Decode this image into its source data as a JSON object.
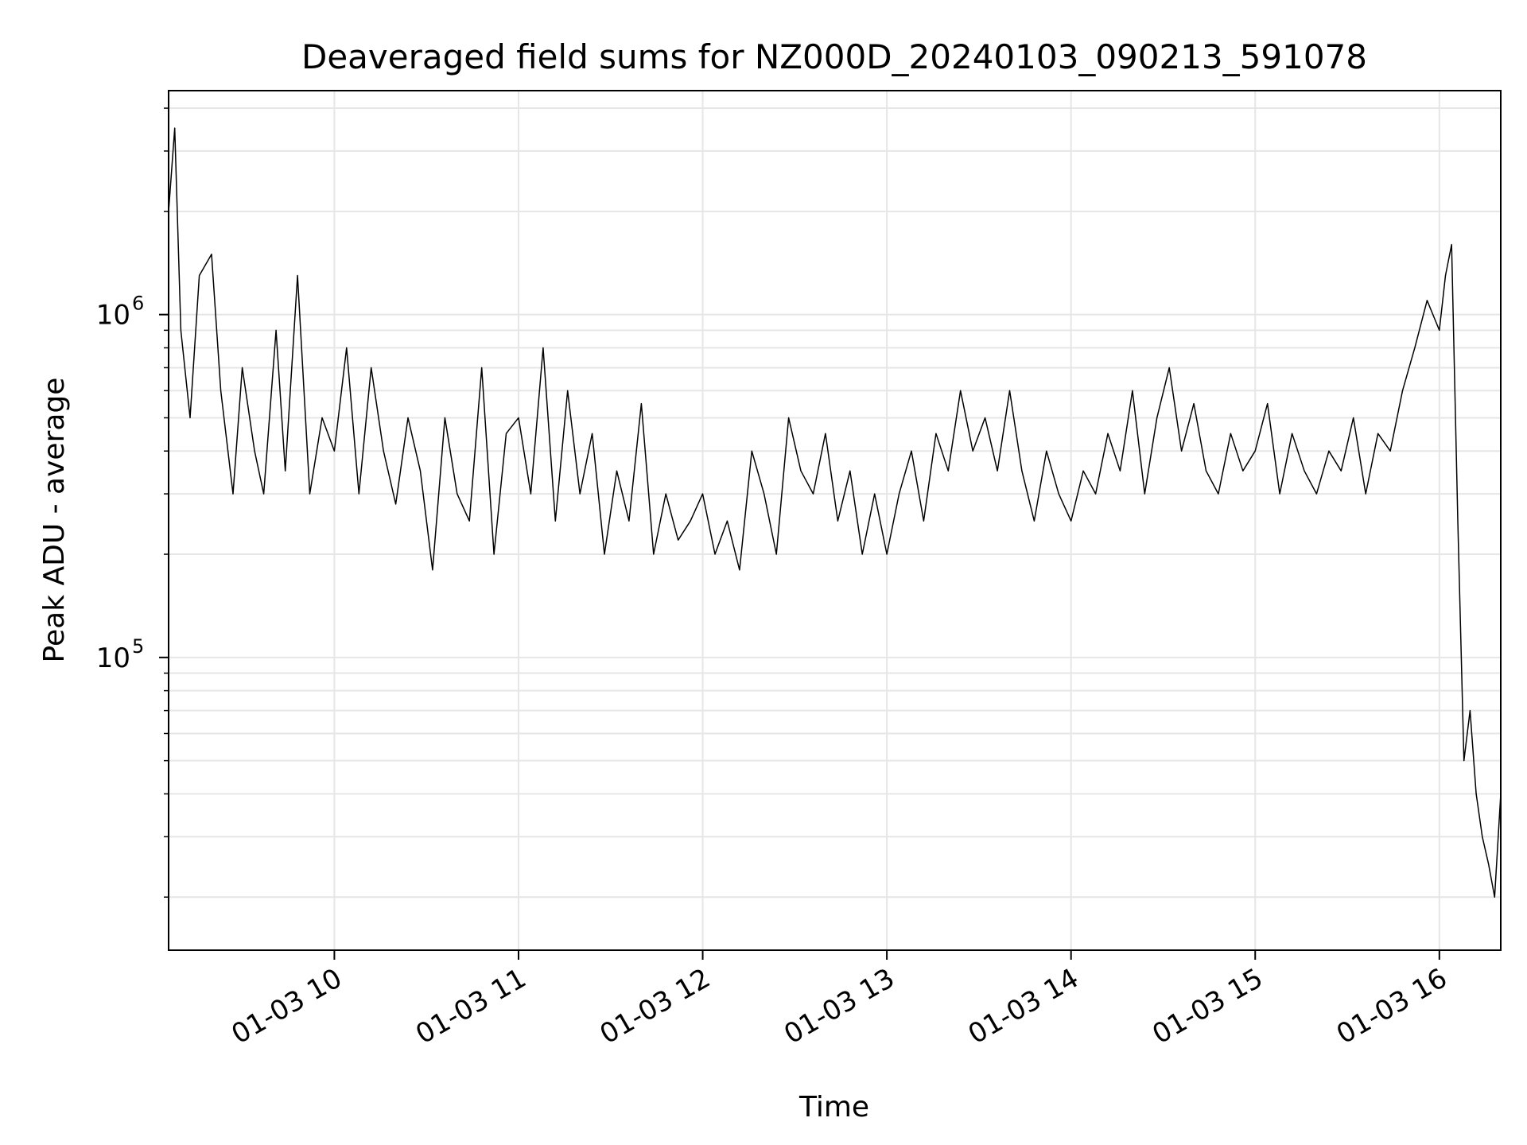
{
  "chart_data": {
    "type": "line",
    "title": "Deaveraged field sums for NZ000D_20240103_090213_591078",
    "xlabel": "Time",
    "ylabel": "Peak ADU - average",
    "xlim": [
      "2024-01-03 09:06",
      "2024-01-03 16:20"
    ],
    "ylim": [
      14000,
      4500000
    ],
    "yscale": "log",
    "grid": true,
    "line_color": "#000000",
    "x_ticks": [
      {
        "value": "2024-01-03 10:00",
        "label": "01-03 10"
      },
      {
        "value": "2024-01-03 11:00",
        "label": "01-03 11"
      },
      {
        "value": "2024-01-03 12:00",
        "label": "01-03 12"
      },
      {
        "value": "2024-01-03 13:00",
        "label": "01-03 13"
      },
      {
        "value": "2024-01-03 14:00",
        "label": "01-03 14"
      },
      {
        "value": "2024-01-03 15:00",
        "label": "01-03 15"
      },
      {
        "value": "2024-01-03 16:00",
        "label": "01-03 16"
      }
    ],
    "y_ticks": [
      {
        "value": 100000,
        "base": "10",
        "exp": "5"
      },
      {
        "value": 1000000,
        "base": "10",
        "exp": "6"
      }
    ],
    "series": [
      {
        "x": [
          "2024-01-03 09:06",
          "2024-01-03 09:08",
          "2024-01-03 09:10",
          "2024-01-03 09:13",
          "2024-01-03 09:16",
          "2024-01-03 09:20",
          "2024-01-03 09:23",
          "2024-01-03 09:27",
          "2024-01-03 09:30",
          "2024-01-03 09:34",
          "2024-01-03 09:37",
          "2024-01-03 09:41",
          "2024-01-03 09:44",
          "2024-01-03 09:48",
          "2024-01-03 09:52",
          "2024-01-03 09:56",
          "2024-01-03 10:00",
          "2024-01-03 10:04",
          "2024-01-03 10:08",
          "2024-01-03 10:12",
          "2024-01-03 10:16",
          "2024-01-03 10:20",
          "2024-01-03 10:24",
          "2024-01-03 10:28",
          "2024-01-03 10:32",
          "2024-01-03 10:36",
          "2024-01-03 10:40",
          "2024-01-03 10:44",
          "2024-01-03 10:48",
          "2024-01-03 10:52",
          "2024-01-03 10:56",
          "2024-01-03 11:00",
          "2024-01-03 11:04",
          "2024-01-03 11:08",
          "2024-01-03 11:12",
          "2024-01-03 11:16",
          "2024-01-03 11:20",
          "2024-01-03 11:24",
          "2024-01-03 11:28",
          "2024-01-03 11:32",
          "2024-01-03 11:36",
          "2024-01-03 11:40",
          "2024-01-03 11:44",
          "2024-01-03 11:48",
          "2024-01-03 11:52",
          "2024-01-03 11:56",
          "2024-01-03 12:00",
          "2024-01-03 12:04",
          "2024-01-03 12:08",
          "2024-01-03 12:12",
          "2024-01-03 12:16",
          "2024-01-03 12:20",
          "2024-01-03 12:24",
          "2024-01-03 12:28",
          "2024-01-03 12:32",
          "2024-01-03 12:36",
          "2024-01-03 12:40",
          "2024-01-03 12:44",
          "2024-01-03 12:48",
          "2024-01-03 12:52",
          "2024-01-03 12:56",
          "2024-01-03 13:00",
          "2024-01-03 13:04",
          "2024-01-03 13:08",
          "2024-01-03 13:12",
          "2024-01-03 13:16",
          "2024-01-03 13:20",
          "2024-01-03 13:24",
          "2024-01-03 13:28",
          "2024-01-03 13:32",
          "2024-01-03 13:36",
          "2024-01-03 13:40",
          "2024-01-03 13:44",
          "2024-01-03 13:48",
          "2024-01-03 13:52",
          "2024-01-03 13:56",
          "2024-01-03 14:00",
          "2024-01-03 14:04",
          "2024-01-03 14:08",
          "2024-01-03 14:12",
          "2024-01-03 14:16",
          "2024-01-03 14:20",
          "2024-01-03 14:24",
          "2024-01-03 14:28",
          "2024-01-03 14:32",
          "2024-01-03 14:36",
          "2024-01-03 14:40",
          "2024-01-03 14:44",
          "2024-01-03 14:48",
          "2024-01-03 14:52",
          "2024-01-03 14:56",
          "2024-01-03 15:00",
          "2024-01-03 15:04",
          "2024-01-03 15:08",
          "2024-01-03 15:12",
          "2024-01-03 15:16",
          "2024-01-03 15:20",
          "2024-01-03 15:24",
          "2024-01-03 15:28",
          "2024-01-03 15:32",
          "2024-01-03 15:36",
          "2024-01-03 15:40",
          "2024-01-03 15:44",
          "2024-01-03 15:48",
          "2024-01-03 15:52",
          "2024-01-03 15:56",
          "2024-01-03 16:00",
          "2024-01-03 16:02",
          "2024-01-03 16:04",
          "2024-01-03 16:06",
          "2024-01-03 16:08",
          "2024-01-03 16:10",
          "2024-01-03 16:12",
          "2024-01-03 16:14",
          "2024-01-03 16:16",
          "2024-01-03 16:18",
          "2024-01-03 16:20"
        ],
        "y": [
          2000000,
          3500000,
          900000,
          500000,
          1300000,
          1500000,
          600000,
          300000,
          700000,
          400000,
          300000,
          900000,
          350000,
          1300000,
          300000,
          500000,
          400000,
          800000,
          300000,
          700000,
          400000,
          280000,
          500000,
          350000,
          180000,
          500000,
          300000,
          250000,
          700000,
          200000,
          450000,
          500000,
          300000,
          800000,
          250000,
          600000,
          300000,
          450000,
          200000,
          350000,
          250000,
          550000,
          200000,
          300000,
          220000,
          250000,
          300000,
          200000,
          250000,
          180000,
          400000,
          300000,
          200000,
          500000,
          350000,
          300000,
          450000,
          250000,
          350000,
          200000,
          300000,
          200000,
          300000,
          400000,
          250000,
          450000,
          350000,
          600000,
          400000,
          500000,
          350000,
          600000,
          350000,
          250000,
          400000,
          300000,
          250000,
          350000,
          300000,
          450000,
          350000,
          600000,
          300000,
          500000,
          700000,
          400000,
          550000,
          350000,
          300000,
          450000,
          350000,
          400000,
          550000,
          300000,
          450000,
          350000,
          300000,
          400000,
          350000,
          500000,
          300000,
          450000,
          400000,
          600000,
          800000,
          1100000,
          900000,
          1300000,
          1600000,
          250000,
          50000,
          70000,
          40000,
          30000,
          25000,
          20000,
          40000
        ]
      }
    ]
  }
}
